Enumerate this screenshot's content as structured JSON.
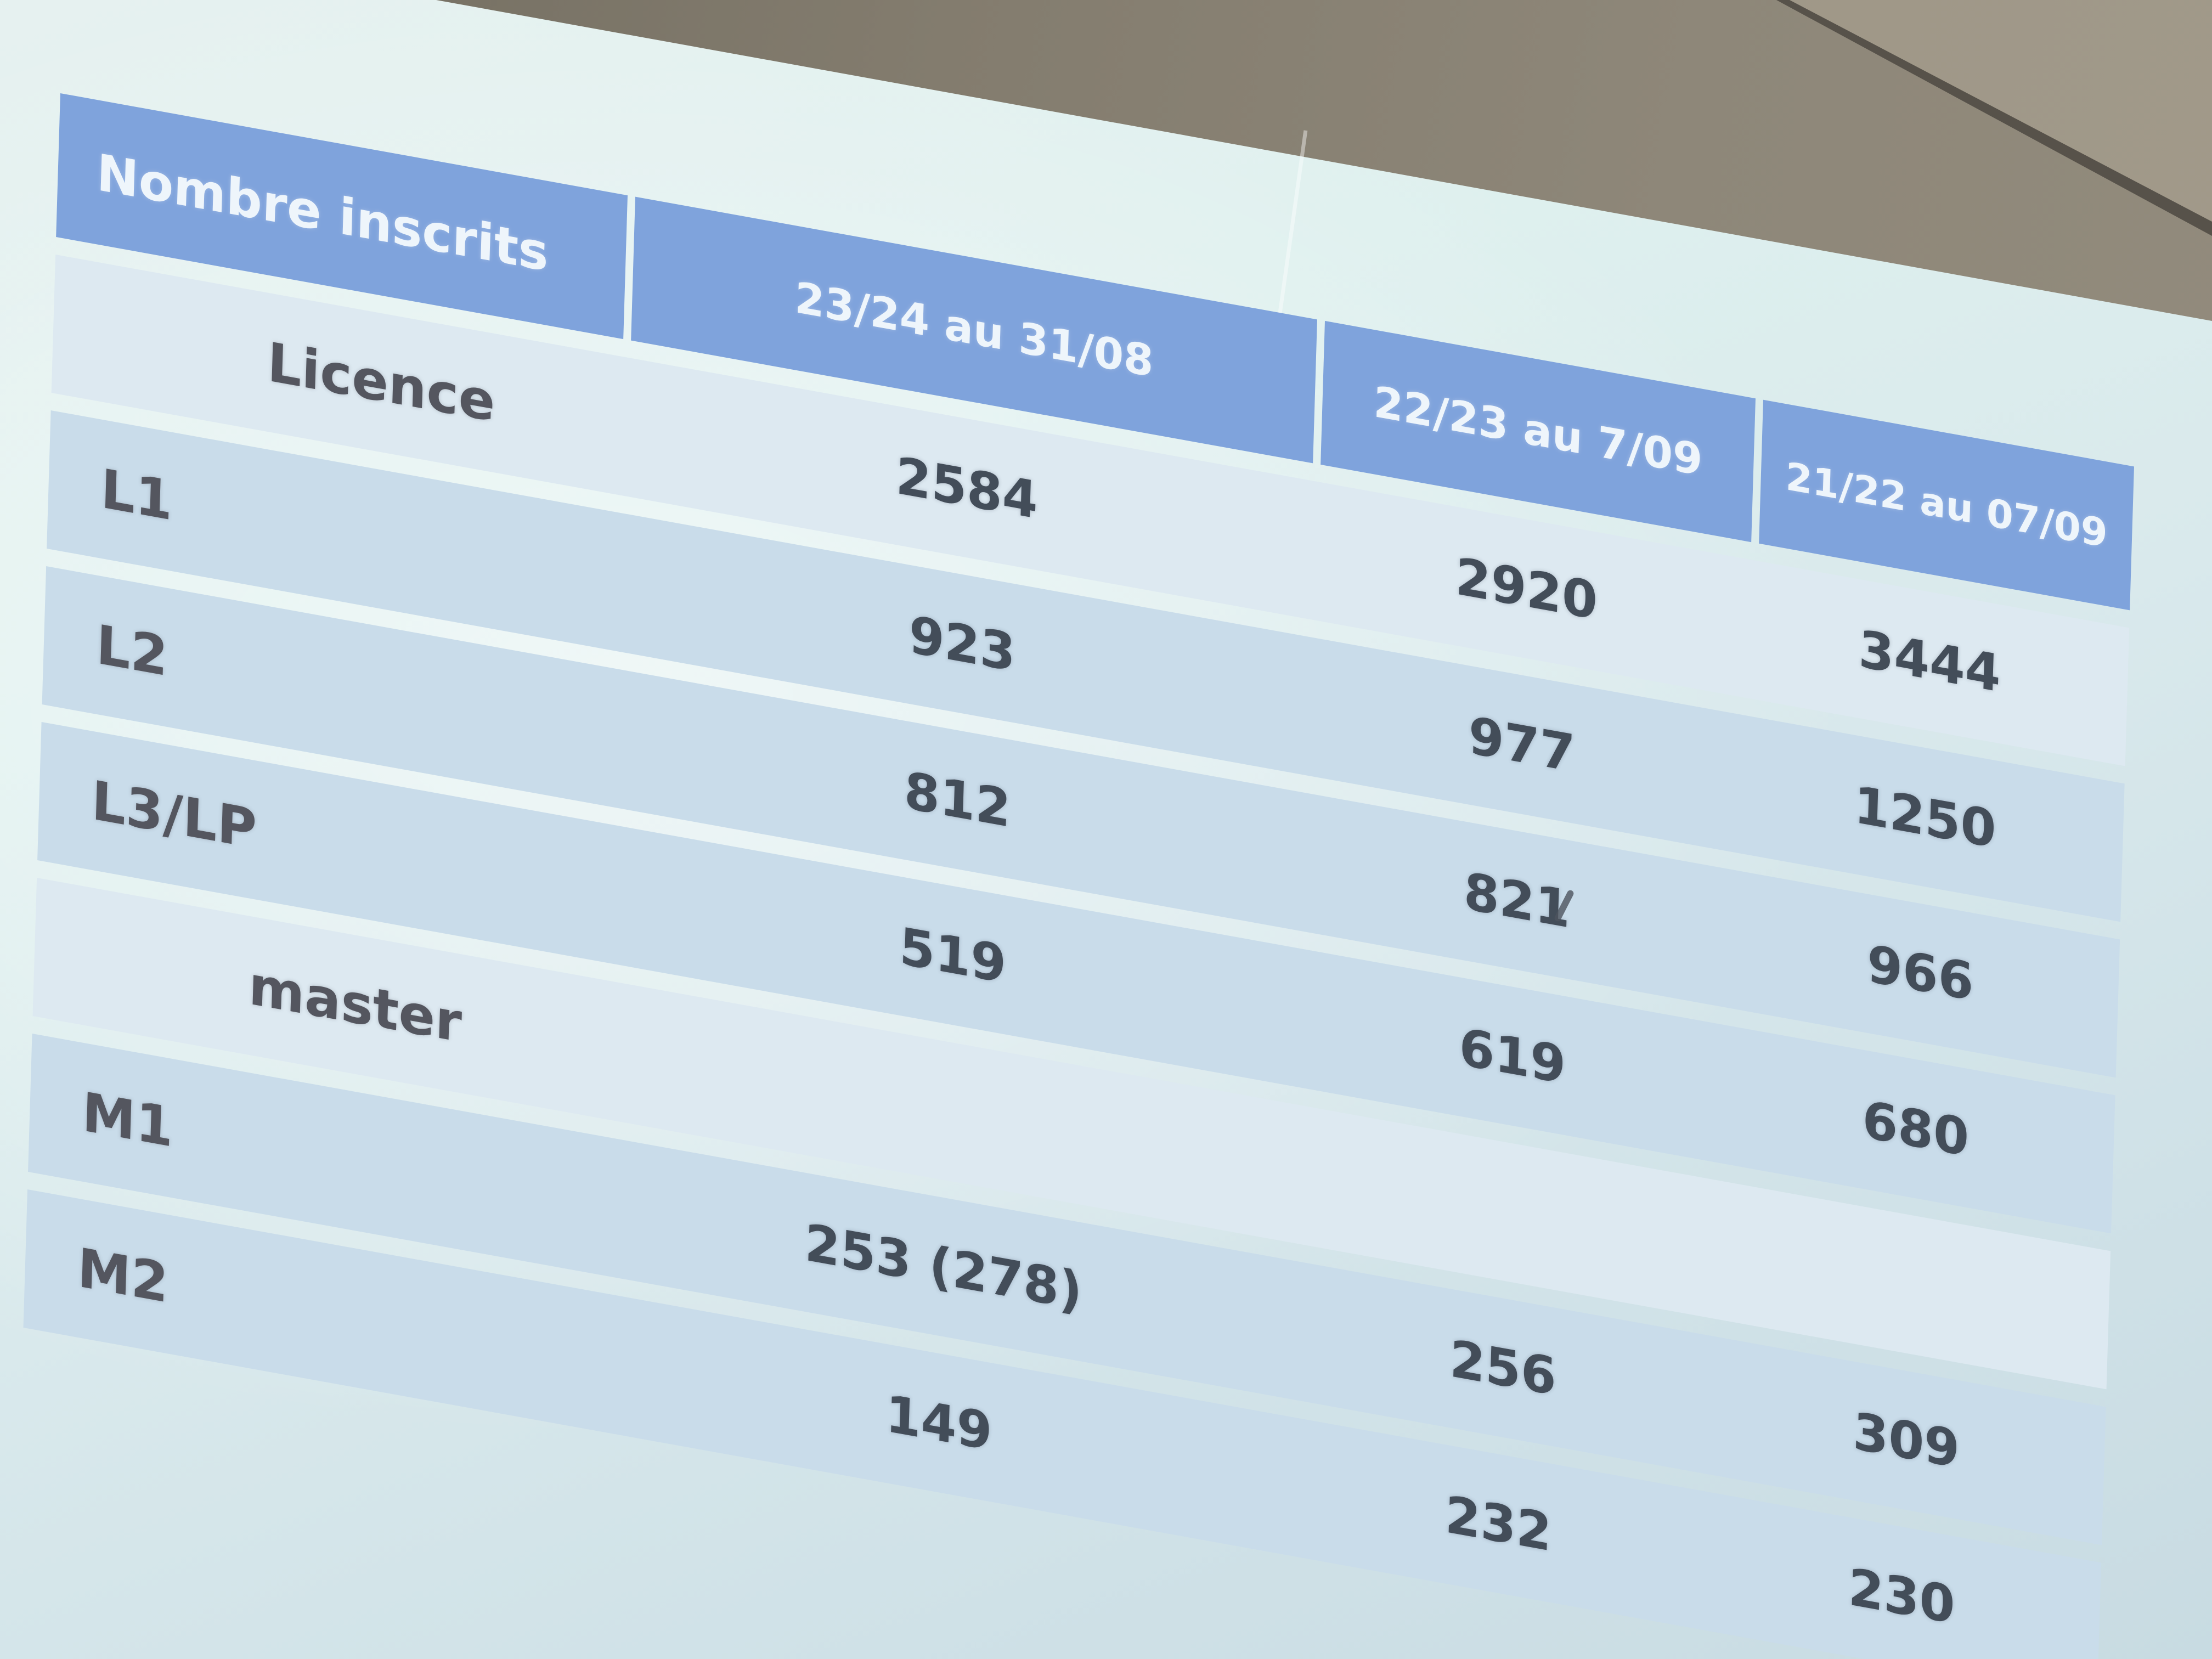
{
  "chart_data": {
    "type": "table",
    "title": "Nombre inscrits",
    "columns": [
      "23/24 au 31/08",
      "22/23 au 7/09",
      "21/22 au 07/09"
    ],
    "rows": [
      {
        "label": "Licence",
        "category": true,
        "values": [
          "2584",
          "2920",
          "3444"
        ]
      },
      {
        "label": "L1",
        "category": false,
        "values": [
          "923",
          "977",
          "1250"
        ]
      },
      {
        "label": "L2",
        "category": false,
        "values": [
          "812",
          "821",
          "966"
        ]
      },
      {
        "label": "L3/LP",
        "category": false,
        "values": [
          "519",
          "619",
          "680"
        ]
      },
      {
        "label": "master",
        "category": true,
        "values": [
          "",
          "",
          ""
        ]
      },
      {
        "label": "M1",
        "category": false,
        "values": [
          "253 (278)",
          "256",
          "309"
        ]
      },
      {
        "label": "M2",
        "category": false,
        "values": [
          "149",
          "232",
          "230"
        ]
      }
    ],
    "layout_hints": {
      "header_position": "top",
      "first_column": "row labels",
      "category_rows_indented": true,
      "grid": "banded rows, no vertical gridlines in body"
    }
  },
  "colors": {
    "header_blue": "#7fa3dc",
    "header_text": "#eef5fb",
    "row_band_blue": "#c9dcea",
    "row_band_light": "#dde9f1",
    "screen_background": "#dcebec",
    "wall_dark": "#6f6a5e",
    "wall_light": "#9c9586",
    "label_text": "#54565f",
    "value_text": "#434d59"
  }
}
